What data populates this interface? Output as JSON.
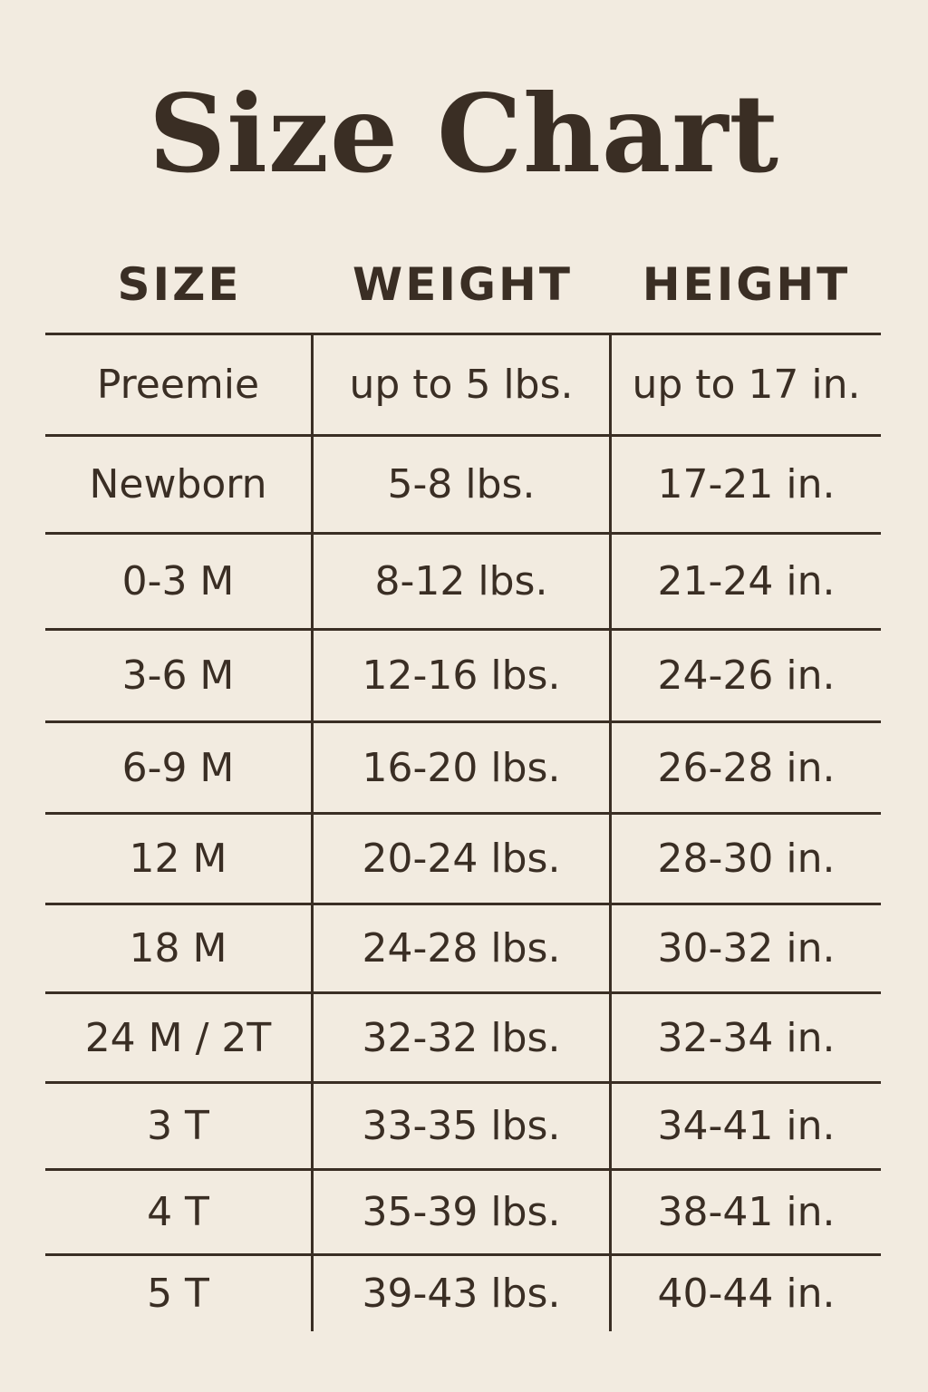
{
  "title": "Size Chart",
  "colors": {
    "background": "#f2ebe0",
    "text": "#3a2e24"
  },
  "headers": [
    "SIZE",
    "WEIGHT",
    "HEIGHT"
  ],
  "rows": [
    [
      "Preemie",
      "up to 5 lbs.",
      "up to 17 in."
    ],
    [
      "Newborn",
      "5-8 lbs.",
      "17-21 in."
    ],
    [
      "0-3 M",
      "8-12 lbs.",
      "21-24 in."
    ],
    [
      "3-6 M",
      "12-16 lbs.",
      "24-26 in."
    ],
    [
      "6-9 M",
      "16-20 lbs.",
      "26-28 in."
    ],
    [
      "12 M",
      "20-24 lbs.",
      "28-30 in."
    ],
    [
      "18 M",
      "24-28 lbs.",
      "30-32 in."
    ],
    [
      "24 M / 2T",
      "32-32 lbs.",
      "32-34 in."
    ],
    [
      "3 T",
      "33-35 lbs.",
      "34-41 in."
    ],
    [
      "4 T",
      "35-39 lbs.",
      "38-41 in."
    ],
    [
      "5 T",
      "39-43 lbs.",
      "40-44 in."
    ]
  ]
}
